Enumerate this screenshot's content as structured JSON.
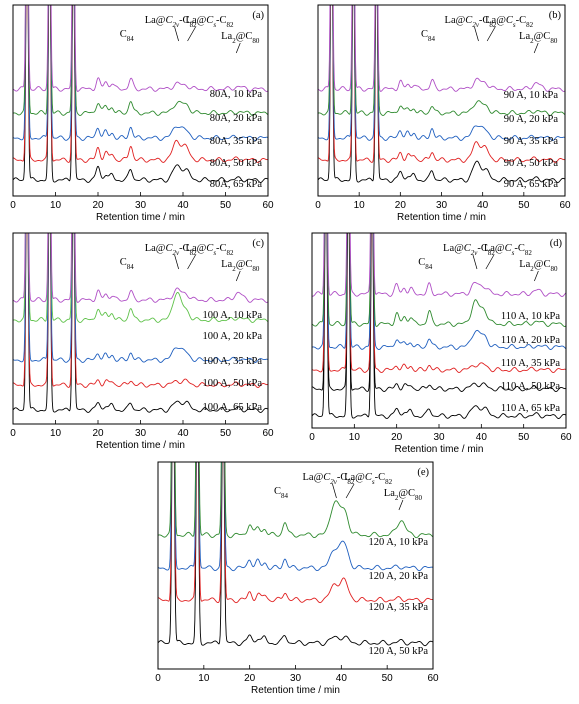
{
  "colors": {
    "purple": "#b04fc6",
    "green": "#2f8a2f",
    "lightgreen": "#5fc24a",
    "blue": "#1f5fbf",
    "red": "#e02020",
    "black": "#000000"
  },
  "chart_data": [
    {
      "panel": "(a)",
      "type": "line",
      "xlabel": "Retention time / min",
      "xlim": [
        0,
        60
      ],
      "xticks": [
        "0",
        "10",
        "20",
        "30",
        "40",
        "50",
        "60"
      ],
      "annotations": {
        "c84": "C84",
        "c2v_pre": "La@",
        "c2v_sym": "C",
        "c2v_sub": "2v",
        "c2v_post": "-C82",
        "cs_pre": "La@",
        "cs_sym": "C",
        "cs_sub": "s",
        "cs_post": "-C82",
        "la2_pre": "La",
        "la2_sub": "2",
        "la2_post": "@C80"
      },
      "series": [
        {
          "name": "80A, 65 kPa",
          "color": "black",
          "peaks": [
            [
              20,
              0.55
            ],
            [
              21.8,
              0.25
            ],
            [
              23.3,
              0.2
            ],
            [
              27.7,
              0.45
            ],
            [
              38.5,
              0.55
            ],
            [
              40.6,
              0.4
            ],
            [
              53,
              0.05
            ]
          ]
        },
        {
          "name": "80A, 50 kPa",
          "color": "red",
          "peaks": [
            [
              20,
              0.5
            ],
            [
              21.8,
              0.3
            ],
            [
              23.3,
              0.25
            ],
            [
              27.7,
              0.6
            ],
            [
              38.5,
              0.75
            ],
            [
              40.6,
              0.5
            ],
            [
              53,
              0.05
            ]
          ]
        },
        {
          "name": "80A, 35 kPa",
          "color": "blue",
          "peaks": [
            [
              20,
              0.45
            ],
            [
              21.8,
              0.25
            ],
            [
              23.3,
              0.2
            ],
            [
              27.7,
              0.45
            ],
            [
              38.5,
              0.5
            ],
            [
              40.6,
              0.3
            ],
            [
              53,
              0.05
            ]
          ]
        },
        {
          "name": "80A, 20 kPa",
          "color": "green",
          "peaks": [
            [
              20,
              0.45
            ],
            [
              21.8,
              0.3
            ],
            [
              23.3,
              0.25
            ],
            [
              27.7,
              0.5
            ],
            [
              38.5,
              0.4
            ],
            [
              40.6,
              0.35
            ],
            [
              53,
              0.05
            ]
          ]
        },
        {
          "name": "80A, 10 kPa",
          "color": "purple",
          "peaks": [
            [
              20,
              0.4
            ],
            [
              21.8,
              0.3
            ],
            [
              23.3,
              0.25
            ],
            [
              27.7,
              0.4
            ],
            [
              38.5,
              0.2
            ],
            [
              40.6,
              0.15
            ],
            [
              53,
              0.1
            ]
          ]
        }
      ]
    },
    {
      "panel": "(b)",
      "type": "line",
      "xlabel": "Retention time / min",
      "xlim": [
        0,
        60
      ],
      "xticks": [
        "0",
        "10",
        "20",
        "30",
        "40",
        "50",
        "60"
      ],
      "annotations": {
        "c84": "C84",
        "c2v_pre": "La@",
        "c2v_sym": "C",
        "c2v_sub": "2v",
        "c2v_post": "-C82",
        "cs_pre": "La@",
        "cs_sym": "C",
        "cs_sub": "s",
        "cs_post": "-C82",
        "la2_pre": "La",
        "la2_sub": "2",
        "la2_post": "@C80"
      },
      "series": [
        {
          "name": "90 A, 65 kPa",
          "color": "black",
          "peaks": [
            [
              20,
              0.35
            ],
            [
              21.8,
              0.2
            ],
            [
              23.3,
              0.2
            ],
            [
              27.7,
              0.4
            ],
            [
              38.5,
              0.7
            ],
            [
              40.6,
              0.4
            ],
            [
              53,
              0.05
            ]
          ]
        },
        {
          "name": "90 A, 50 kPa",
          "color": "red",
          "peaks": [
            [
              20,
              0.3
            ],
            [
              21.8,
              0.2
            ],
            [
              23.3,
              0.2
            ],
            [
              27.7,
              0.35
            ],
            [
              38.5,
              0.7
            ],
            [
              40.6,
              0.45
            ],
            [
              53,
              0.05
            ]
          ]
        },
        {
          "name": "90 A, 35 kPa",
          "color": "blue",
          "peaks": [
            [
              20,
              0.35
            ],
            [
              21.8,
              0.2
            ],
            [
              23.3,
              0.2
            ],
            [
              27.7,
              0.4
            ],
            [
              38.5,
              0.55
            ],
            [
              40.6,
              0.3
            ],
            [
              53,
              0.05
            ]
          ]
        },
        {
          "name": "90 A, 20 kPa",
          "color": "green",
          "peaks": [
            [
              20,
              0.35
            ],
            [
              21.8,
              0.2
            ],
            [
              23.3,
              0.2
            ],
            [
              27.7,
              0.3
            ],
            [
              38.5,
              0.45
            ],
            [
              40.6,
              0.3
            ],
            [
              53,
              0.1
            ]
          ]
        },
        {
          "name": "90 A, 10 kPa",
          "color": "purple",
          "peaks": [
            [
              20,
              0.3
            ],
            [
              21.8,
              0.2
            ],
            [
              23.3,
              0.2
            ],
            [
              27.7,
              0.35
            ],
            [
              38.5,
              0.35
            ],
            [
              40.6,
              0.25
            ],
            [
              53,
              0.25
            ]
          ]
        }
      ]
    },
    {
      "panel": "(c)",
      "type": "line",
      "xlabel": "Retention time / min",
      "xlim": [
        0,
        60
      ],
      "xticks": [
        "0",
        "10",
        "20",
        "30",
        "40",
        "50",
        "60"
      ],
      "annotations": {
        "c84": "C84",
        "c2v_pre": "La@",
        "c2v_sym": "C",
        "c2v_sub": "2v",
        "c2v_post": "-C82",
        "cs_pre": "La@",
        "cs_sym": "C",
        "cs_sub": "s",
        "cs_post": "-C82",
        "la2_pre": "La",
        "la2_sub": "2",
        "la2_post": "@C80"
      },
      "series": [
        {
          "name": "100 A, 65 kPa",
          "color": "black",
          "peaks": [
            [
              20,
              0.3
            ],
            [
              21.8,
              0.2
            ],
            [
              23.3,
              0.2
            ],
            [
              27.7,
              0.3
            ],
            [
              38.5,
              0.3
            ],
            [
              40.6,
              0.3
            ],
            [
              53,
              0.05
            ]
          ]
        },
        {
          "name": "100 A, 50 kPa",
          "color": "red",
          "peaks": [
            [
              20,
              0.2
            ],
            [
              21.8,
              0.15
            ],
            [
              23.3,
              0.15
            ],
            [
              27.7,
              0.2
            ],
            [
              38.5,
              0.15
            ],
            [
              40.6,
              0.15
            ],
            [
              53,
              0.05
            ]
          ]
        },
        {
          "name": "100 A, 35 kPa",
          "color": "blue",
          "peaks": [
            [
              20,
              0.3
            ],
            [
              21.8,
              0.2
            ],
            [
              23.3,
              0.2
            ],
            [
              27.7,
              0.3
            ],
            [
              38.5,
              0.55
            ],
            [
              40.6,
              0.3
            ],
            [
              53,
              0.05
            ]
          ]
        },
        {
          "name": "100 A, 20 kPa",
          "color": "lightgreen",
          "peaks": [
            [
              20,
              0.5
            ],
            [
              21.8,
              0.3
            ],
            [
              23.3,
              0.3
            ],
            [
              27.7,
              0.5
            ],
            [
              38.5,
              1.1
            ],
            [
              40.6,
              0.4
            ],
            [
              53,
              0.1
            ]
          ]
        },
        {
          "name": "100 A, 10 kPa",
          "color": "purple",
          "peaks": [
            [
              20,
              0.35
            ],
            [
              21.8,
              0.25
            ],
            [
              23.3,
              0.2
            ],
            [
              27.7,
              0.35
            ],
            [
              38.5,
              0.4
            ],
            [
              40.6,
              0.25
            ],
            [
              53,
              0.3
            ]
          ]
        }
      ]
    },
    {
      "panel": "(d)",
      "type": "line",
      "xlabel": "Retention time / min",
      "xlim": [
        0,
        60
      ],
      "xticks": [
        "0",
        "10",
        "20",
        "30",
        "40",
        "50",
        "60"
      ],
      "annotations": {
        "c84": "C84",
        "c2v_pre": "La@",
        "c2v_sym": "C",
        "c2v_sub": "2v",
        "c2v_post": "-C82",
        "cs_pre": "La@",
        "cs_sym": "C",
        "cs_sub": "s",
        "cs_post": "-C82",
        "la2_pre": "La",
        "la2_sub": "2",
        "la2_post": "@C80"
      },
      "series": [
        {
          "name": "110 A, 65 kPa",
          "color": "black",
          "peaks": [
            [
              20,
              0.3
            ],
            [
              21.8,
              0.2
            ],
            [
              23.3,
              0.2
            ],
            [
              27.7,
              0.3
            ],
            [
              38.5,
              0.35
            ],
            [
              40.6,
              0.3
            ],
            [
              53,
              0.05
            ]
          ]
        },
        {
          "name": "110 A, 50 kPa",
          "color": "black",
          "peaks": [
            [
              20,
              0.2
            ],
            [
              21.8,
              0.15
            ],
            [
              23.3,
              0.15
            ],
            [
              27.7,
              0.2
            ],
            [
              38.5,
              0.2
            ],
            [
              40.6,
              0.15
            ],
            [
              53,
              0.05
            ]
          ]
        },
        {
          "name": "110 A, 35 kPa",
          "color": "red",
          "peaks": [
            [
              20,
              0.2
            ],
            [
              21.8,
              0.15
            ],
            [
              23.3,
              0.15
            ],
            [
              27.7,
              0.2
            ],
            [
              38.5,
              0.2
            ],
            [
              40.6,
              0.2
            ],
            [
              53,
              0.05
            ]
          ]
        },
        {
          "name": "110 A, 20 kPa",
          "color": "blue",
          "peaks": [
            [
              20,
              0.35
            ],
            [
              21.8,
              0.2
            ],
            [
              23.3,
              0.2
            ],
            [
              27.7,
              0.35
            ],
            [
              38.5,
              0.6
            ],
            [
              40.6,
              0.45
            ],
            [
              53,
              0.05
            ]
          ]
        },
        {
          "name": "110 A, 10 kPa",
          "color": "green",
          "peaks": [
            [
              20,
              0.4
            ],
            [
              21.8,
              0.3
            ],
            [
              23.3,
              0.3
            ],
            [
              27.7,
              0.5
            ],
            [
              38.5,
              0.85
            ],
            [
              40.6,
              0.55
            ],
            [
              53,
              0.1
            ]
          ]
        },
        {
          "name": "",
          "color": "purple",
          "peaks": [
            [
              20,
              0.35
            ],
            [
              21.8,
              0.25
            ],
            [
              23.3,
              0.2
            ],
            [
              27.7,
              0.35
            ],
            [
              38.5,
              0.4
            ],
            [
              40.6,
              0.3
            ],
            [
              53,
              0.15
            ]
          ]
        }
      ]
    },
    {
      "panel": "(e)",
      "type": "line",
      "xlabel": "Retention time / min",
      "xlim": [
        0,
        60
      ],
      "xticks": [
        "0",
        "10",
        "20",
        "30",
        "40",
        "50",
        "60"
      ],
      "annotations": {
        "c84": "C84",
        "c2v_pre": "La@",
        "c2v_sym": "C",
        "c2v_sub": "2v",
        "c2v_post": "-C82",
        "cs_pre": "La@",
        "cs_sym": "C",
        "cs_sub": "s",
        "cs_post": "-C82",
        "la2_pre": "La",
        "la2_sub": "2",
        "la2_post": "@C80"
      },
      "series": [
        {
          "name": "120 A, 50 kPa",
          "color": "black",
          "peaks": [
            [
              20,
              0.3
            ],
            [
              21.8,
              0.2
            ],
            [
              23.3,
              0.2
            ],
            [
              27.7,
              0.3
            ],
            [
              38.5,
              0.2
            ],
            [
              40.6,
              0.2
            ],
            [
              53,
              0.05
            ]
          ]
        },
        {
          "name": "120 A, 35 kPa",
          "color": "red",
          "peaks": [
            [
              20,
              0.3
            ],
            [
              21.8,
              0.2
            ],
            [
              23.3,
              0.2
            ],
            [
              27.7,
              0.3
            ],
            [
              38.5,
              0.55
            ],
            [
              40.6,
              0.7
            ],
            [
              53,
              0.05
            ]
          ]
        },
        {
          "name": "120 A, 20 kPa",
          "color": "blue",
          "peaks": [
            [
              20,
              0.35
            ],
            [
              21.8,
              0.25
            ],
            [
              23.3,
              0.2
            ],
            [
              27.7,
              0.35
            ],
            [
              38.5,
              0.7
            ],
            [
              40.6,
              0.9
            ],
            [
              53,
              0.05
            ]
          ]
        },
        {
          "name": "120 A, 10 kPa",
          "color": "green",
          "peaks": [
            [
              20,
              0.45
            ],
            [
              21.8,
              0.3
            ],
            [
              23.3,
              0.25
            ],
            [
              27.7,
              0.5
            ],
            [
              38.5,
              1.2
            ],
            [
              40.6,
              0.9
            ],
            [
              53,
              0.55
            ]
          ]
        }
      ]
    }
  ]
}
